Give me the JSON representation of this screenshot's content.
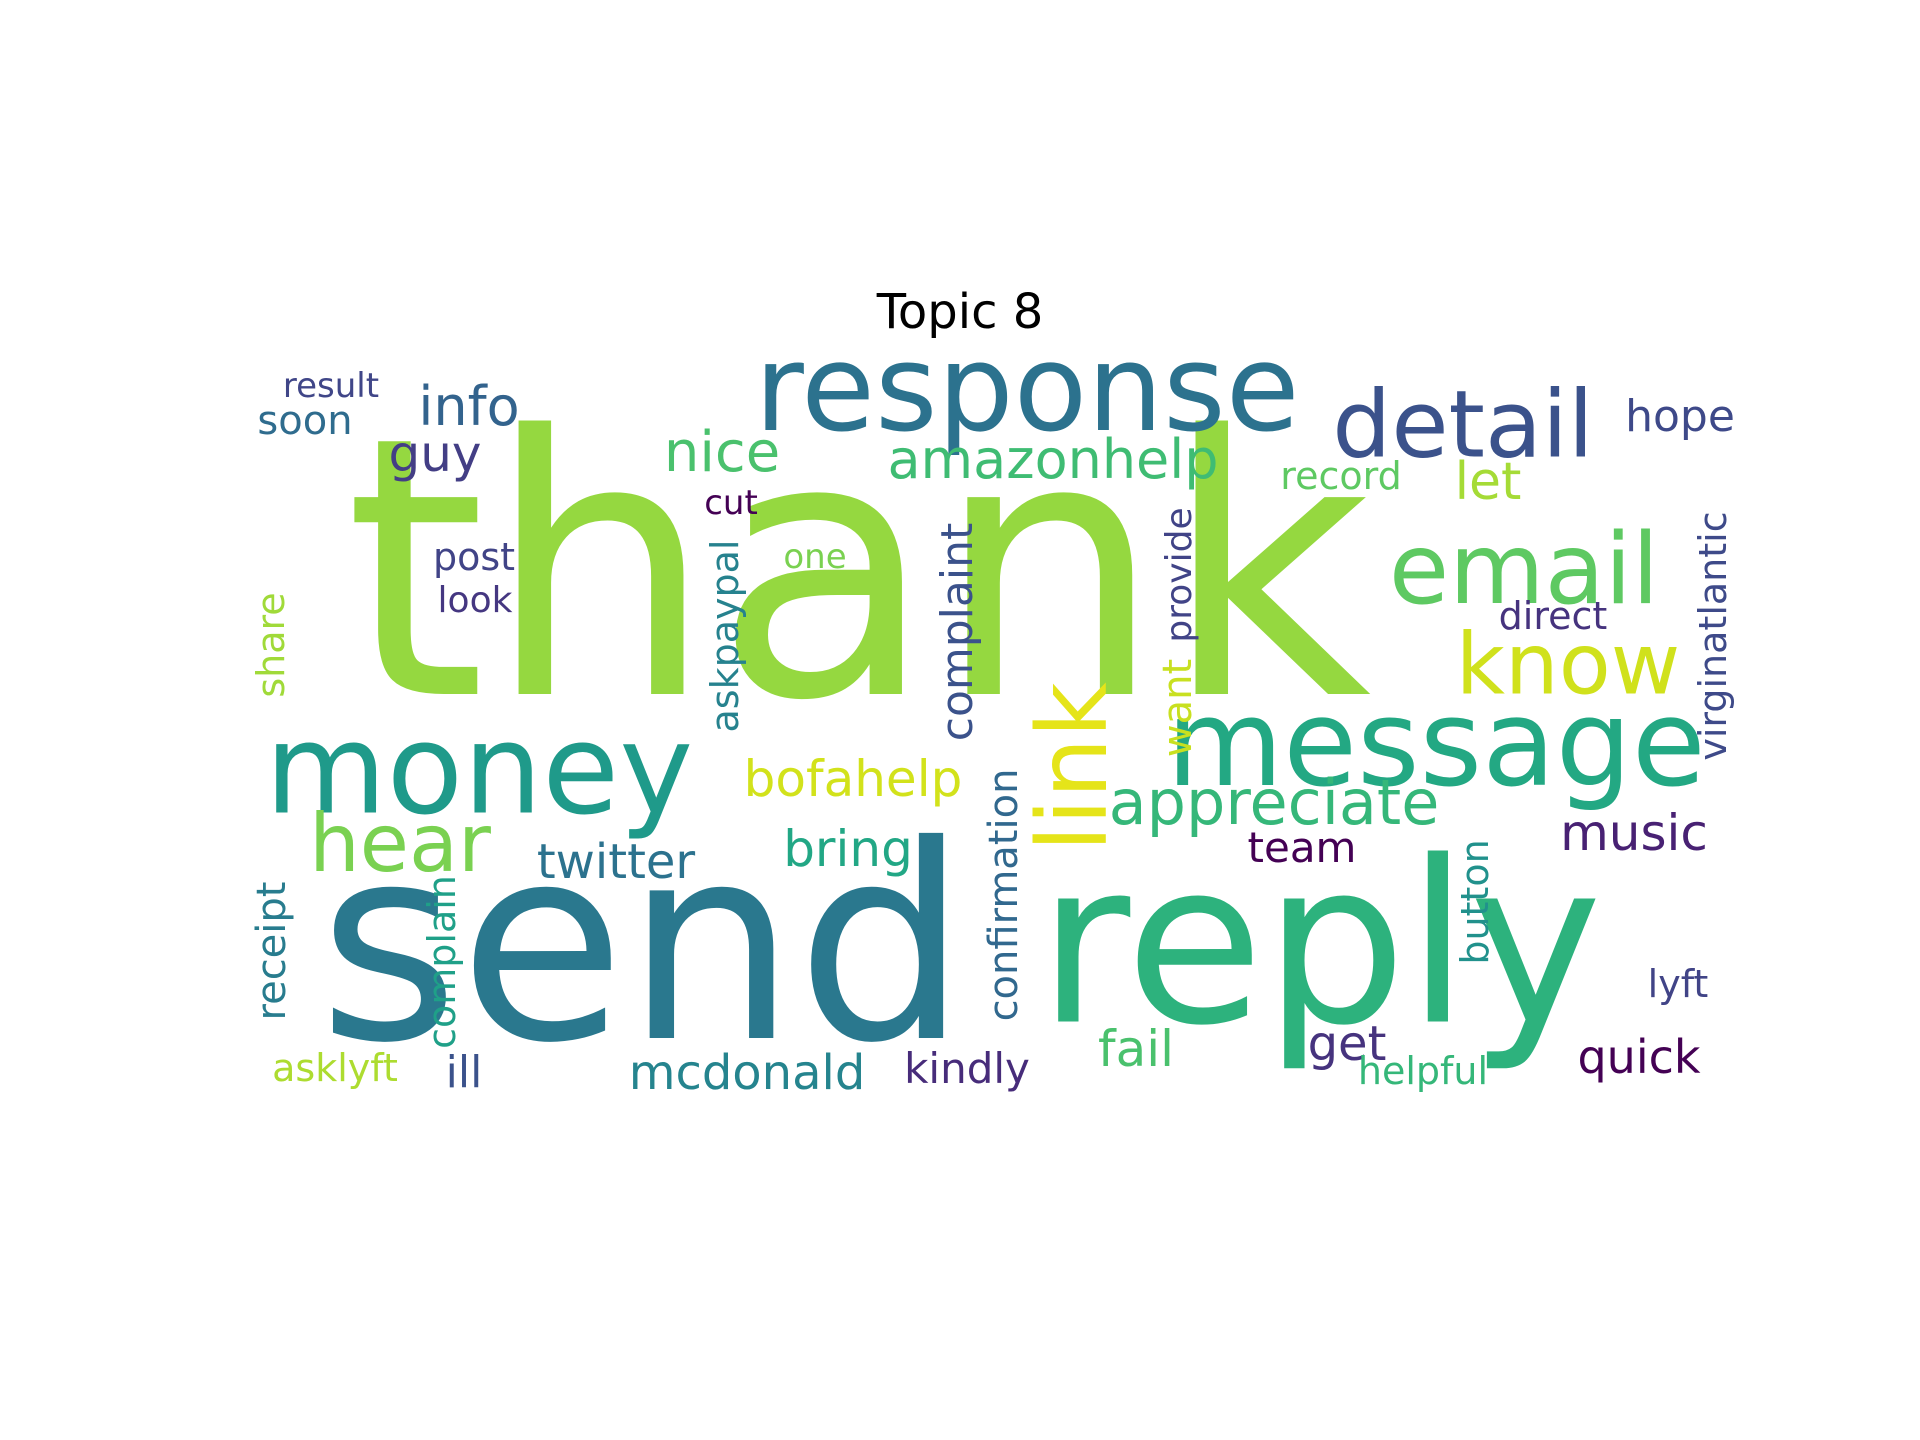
{
  "title": "Topic 8",
  "words": [
    {
      "text": "thank",
      "color": "#95d840",
      "orientation": "horizontal"
    },
    {
      "text": "send",
      "color": "#2a788e",
      "orientation": "horizontal"
    },
    {
      "text": "reply",
      "color": "#2db27d",
      "orientation": "horizontal"
    },
    {
      "text": "response",
      "color": "#2c728e",
      "orientation": "horizontal"
    },
    {
      "text": "money",
      "color": "#1f9a8a",
      "orientation": "horizontal"
    },
    {
      "text": "message",
      "color": "#23a883",
      "orientation": "horizontal"
    },
    {
      "text": "detail",
      "color": "#3b528b",
      "orientation": "horizontal"
    },
    {
      "text": "email",
      "color": "#5ec962",
      "orientation": "horizontal"
    },
    {
      "text": "know",
      "color": "#d0e11c",
      "orientation": "horizontal"
    },
    {
      "text": "link",
      "color": "#e5e419",
      "orientation": "vertical"
    },
    {
      "text": "hear",
      "color": "#7ad151",
      "orientation": "horizontal"
    },
    {
      "text": "appreciate",
      "color": "#35b779",
      "orientation": "horizontal"
    },
    {
      "text": "amazonhelp",
      "color": "#3fbc73",
      "orientation": "horizontal"
    },
    {
      "text": "nice",
      "color": "#4ac16d",
      "orientation": "horizontal"
    },
    {
      "text": "info",
      "color": "#33638d",
      "orientation": "horizontal"
    },
    {
      "text": "guy",
      "color": "#433e85",
      "orientation": "horizontal"
    },
    {
      "text": "bofahelp",
      "color": "#d2e21b",
      "orientation": "horizontal"
    },
    {
      "text": "bring",
      "color": "#22a785",
      "orientation": "horizontal"
    },
    {
      "text": "twitter",
      "color": "#2c728e",
      "orientation": "horizontal"
    },
    {
      "text": "music",
      "color": "#482173",
      "orientation": "horizontal"
    },
    {
      "text": "hope",
      "color": "#3e4989",
      "orientation": "horizontal"
    },
    {
      "text": "let",
      "color": "#a5db36",
      "orientation": "horizontal"
    },
    {
      "text": "record",
      "color": "#5ec962",
      "orientation": "horizontal"
    },
    {
      "text": "complaint",
      "color": "#3b528b",
      "orientation": "vertical"
    },
    {
      "text": "confirmation",
      "color": "#31688e",
      "orientation": "vertical"
    },
    {
      "text": "provide",
      "color": "#414487",
      "orientation": "vertical"
    },
    {
      "text": "want",
      "color": "#c8e020",
      "orientation": "vertical"
    },
    {
      "text": "virginatlantic",
      "color": "#3e4a89",
      "orientation": "vertical"
    },
    {
      "text": "askpaypal",
      "color": "#26828e",
      "orientation": "vertical"
    },
    {
      "text": "button",
      "color": "#21918c",
      "orientation": "vertical"
    },
    {
      "text": "complain",
      "color": "#1fa088",
      "orientation": "vertical"
    },
    {
      "text": "receipt",
      "color": "#287c8e",
      "orientation": "vertical"
    },
    {
      "text": "share",
      "color": "#a0da39",
      "orientation": "vertical"
    },
    {
      "text": "team",
      "color": "#440154",
      "orientation": "horizontal"
    },
    {
      "text": "get",
      "color": "#46337e",
      "orientation": "horizontal"
    },
    {
      "text": "fail",
      "color": "#4ac16d",
      "orientation": "horizontal"
    },
    {
      "text": "quick",
      "color": "#440154",
      "orientation": "horizontal"
    },
    {
      "text": "mcdonald",
      "color": "#25848e",
      "orientation": "horizontal"
    },
    {
      "text": "kindly",
      "color": "#472c7a",
      "orientation": "horizontal"
    },
    {
      "text": "helpful",
      "color": "#35b779",
      "orientation": "horizontal"
    },
    {
      "text": "lyft",
      "color": "#414487",
      "orientation": "horizontal"
    },
    {
      "text": "ill",
      "color": "#3b528b",
      "orientation": "horizontal"
    },
    {
      "text": "asklyft",
      "color": "#addc30",
      "orientation": "horizontal"
    },
    {
      "text": "post",
      "color": "#414487",
      "orientation": "horizontal"
    },
    {
      "text": "look",
      "color": "#453781",
      "orientation": "horizontal"
    },
    {
      "text": "cut",
      "color": "#440154",
      "orientation": "horizontal"
    },
    {
      "text": "one",
      "color": "#7ad151",
      "orientation": "horizontal"
    },
    {
      "text": "direct",
      "color": "#46337e",
      "orientation": "horizontal"
    },
    {
      "text": "result",
      "color": "#404688",
      "orientation": "horizontal"
    },
    {
      "text": "soon",
      "color": "#2f6c8e",
      "orientation": "horizontal"
    }
  ]
}
